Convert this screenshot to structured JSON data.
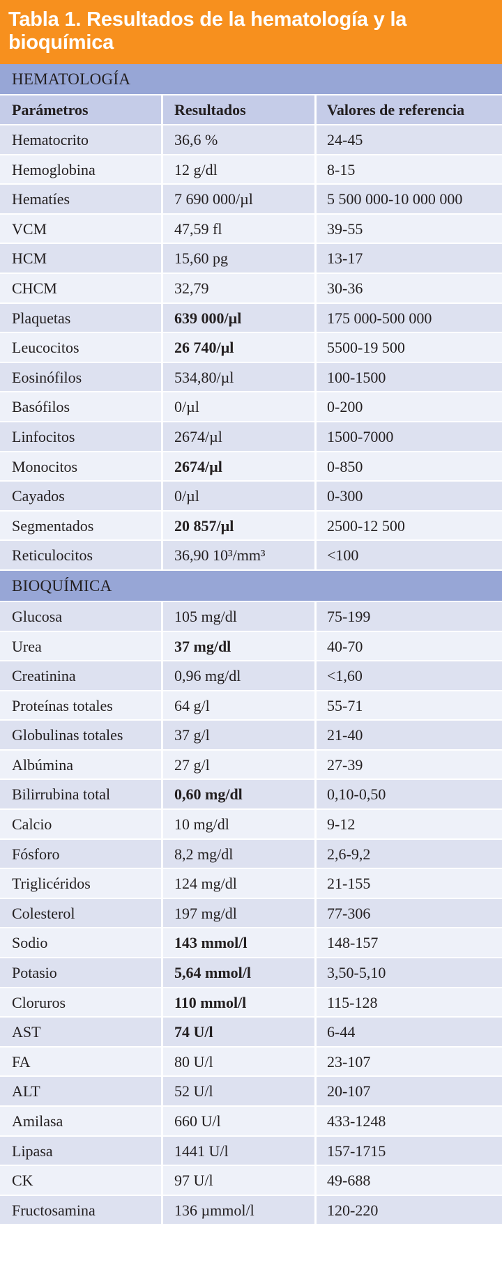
{
  "title": "Tabla 1. Resultados de la hematología y la bioquímica",
  "title_line1": "Tabla 1. Resultados de la hematología y la",
  "title_line2": "bioquímica",
  "colors": {
    "title_bg": "#f7901e",
    "section_bg": "#97a6d6",
    "column_header_bg": "#c5cce8",
    "row_odd_bg": "#dde1f0",
    "row_even_bg": "#eef1f9"
  },
  "columns": [
    "Parámetros",
    "Resultados",
    "Valores de referencia"
  ],
  "sections": [
    {
      "label": "HEMATOLOGÍA",
      "rows": [
        {
          "param": "Hematocrito",
          "result": "36,6 %",
          "ref": "24-45",
          "abnormal": false
        },
        {
          "param": "Hemoglobina",
          "result": "12 g/dl",
          "ref": "8-15",
          "abnormal": false
        },
        {
          "param": "Hematíes",
          "result": "7 690 000/µl",
          "ref": "5 500 000-10 000 000",
          "abnormal": false
        },
        {
          "param": "VCM",
          "result": "47,59 fl",
          "ref": "39-55",
          "abnormal": false
        },
        {
          "param": "HCM",
          "result": "15,60 pg",
          "ref": "13-17",
          "abnormal": false
        },
        {
          "param": "CHCM",
          "result": "32,79",
          "ref": "30-36",
          "abnormal": false
        },
        {
          "param": "Plaquetas",
          "result": "639 000/µl",
          "ref": "175 000-500 000",
          "abnormal": true
        },
        {
          "param": "Leucocitos",
          "result": "26 740/µl",
          "ref": "5500-19 500",
          "abnormal": true
        },
        {
          "param": "Eosinófilos",
          "result": "534,80/µl",
          "ref": "100-1500",
          "abnormal": false
        },
        {
          "param": "Basófilos",
          "result": "0/µl",
          "ref": "0-200",
          "abnormal": false
        },
        {
          "param": "Linfocitos",
          "result": "2674/µl",
          "ref": "1500-7000",
          "abnormal": false
        },
        {
          "param": "Monocitos",
          "result": "2674/µl",
          "ref": "0-850",
          "abnormal": true
        },
        {
          "param": "Cayados",
          "result": "0/µl",
          "ref": "0-300",
          "abnormal": false
        },
        {
          "param": "Segmentados",
          "result": "20 857/µl",
          "ref": "2500-12 500",
          "abnormal": true
        },
        {
          "param": "Reticulocitos",
          "result": "36,90 10³/mm³",
          "ref": "<100",
          "abnormal": false
        }
      ]
    },
    {
      "label": "BIOQUÍMICA",
      "rows": [
        {
          "param": "Glucosa",
          "result": "105 mg/dl",
          "ref": "75-199",
          "abnormal": false
        },
        {
          "param": "Urea",
          "result": "37 mg/dl",
          "ref": "40-70",
          "abnormal": true
        },
        {
          "param": "Creatinina",
          "result": "0,96 mg/dl",
          "ref": "<1,60",
          "abnormal": false
        },
        {
          "param": "Proteínas totales",
          "result": "64 g/l",
          "ref": "55-71",
          "abnormal": false
        },
        {
          "param": "Globulinas totales",
          "result": "37 g/l",
          "ref": "21-40",
          "abnormal": false
        },
        {
          "param": "Albúmina",
          "result": "27 g/l",
          "ref": "27-39",
          "abnormal": false
        },
        {
          "param": "Bilirrubina total",
          "result": "0,60 mg/dl",
          "ref": "0,10-0,50",
          "abnormal": true
        },
        {
          "param": "Calcio",
          "result": "10 mg/dl",
          "ref": "9-12",
          "abnormal": false
        },
        {
          "param": "Fósforo",
          "result": "8,2 mg/dl",
          "ref": "2,6-9,2",
          "abnormal": false
        },
        {
          "param": "Triglicéridos",
          "result": "124 mg/dl",
          "ref": "21-155",
          "abnormal": false
        },
        {
          "param": "Colesterol",
          "result": "197 mg/dl",
          "ref": "77-306",
          "abnormal": false
        },
        {
          "param": "Sodio",
          "result": "143 mmol/l",
          "ref": "148-157",
          "abnormal": true
        },
        {
          "param": "Potasio",
          "result": "5,64 mmol/l",
          "ref": "3,50-5,10",
          "abnormal": true
        },
        {
          "param": "Cloruros",
          "result": "110 mmol/l",
          "ref": "115-128",
          "abnormal": true
        },
        {
          "param": "AST",
          "result": "74 U/l",
          "ref": "6-44",
          "abnormal": true
        },
        {
          "param": "FA",
          "result": "80 U/l",
          "ref": "23-107",
          "abnormal": false
        },
        {
          "param": "ALT",
          "result": "52 U/l",
          "ref": "20-107",
          "abnormal": false
        },
        {
          "param": "Amilasa",
          "result": "660 U/l",
          "ref": "433-1248",
          "abnormal": false
        },
        {
          "param": "Lipasa",
          "result": "1441 U/l",
          "ref": "157-1715",
          "abnormal": false
        },
        {
          "param": "CK",
          "result": "97 U/l",
          "ref": "49-688",
          "abnormal": false
        },
        {
          "param": "Fructosamina",
          "result": "136 µmmol/l",
          "ref": "120-220",
          "abnormal": false
        }
      ]
    }
  ]
}
